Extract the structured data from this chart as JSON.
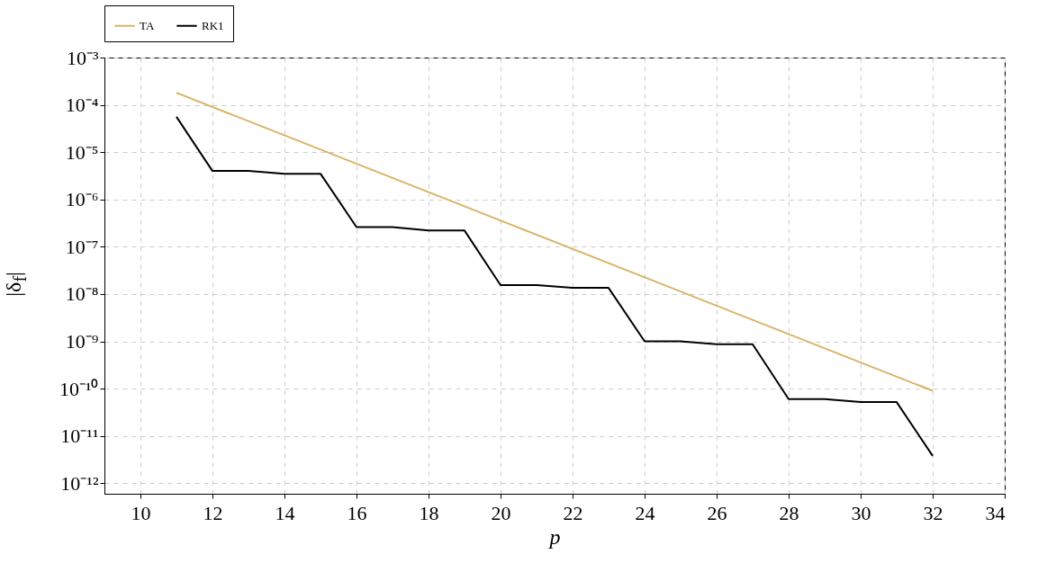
{
  "chart_data": {
    "type": "line",
    "xlabel": "p",
    "ylabel": "|δ$_{f}$|",
    "xlim": [
      9,
      34
    ],
    "xticks": [
      10,
      12,
      14,
      16,
      18,
      20,
      22,
      24,
      26,
      28,
      30,
      32,
      34
    ],
    "ylim": [
      6e-13,
      0.001
    ],
    "yticks": [
      {
        "value": 1e-12,
        "label": "10⁻¹²"
      },
      {
        "value": 1e-11,
        "label": "10⁻¹¹"
      },
      {
        "value": 1e-10,
        "label": "10⁻¹⁰"
      },
      {
        "value": 1e-09,
        "label": "10⁻⁹"
      },
      {
        "value": 1e-08,
        "label": "10⁻⁸"
      },
      {
        "value": 1e-07,
        "label": "10⁻⁷"
      },
      {
        "value": 1e-06,
        "label": "10⁻⁶"
      },
      {
        "value": 1e-05,
        "label": "10⁻⁵"
      },
      {
        "value": 0.0001,
        "label": "10⁻⁴"
      },
      {
        "value": 0.001,
        "label": "10⁻³"
      }
    ],
    "log": true,
    "grid": true,
    "legend": "top",
    "line_style": "solid",
    "series": [
      {
        "name": "TA",
        "color": "#d9b365",
        "x": [
          11,
          32
        ],
        "values": [
          0.00018,
          9e-11
        ]
      },
      {
        "name": "RK1",
        "color": "#000000",
        "x": [
          11,
          12,
          13,
          14,
          15,
          16,
          17,
          18,
          19,
          20,
          21,
          22,
          23,
          24,
          25,
          26,
          27,
          28,
          29,
          30,
          31,
          32
        ],
        "values": [
          5.6e-05,
          4e-06,
          4e-06,
          3.5e-06,
          3.5e-06,
          2.6e-07,
          2.6e-07,
          2.2e-07,
          2.2e-07,
          1.55e-08,
          1.55e-08,
          1.35e-08,
          1.35e-08,
          1e-09,
          1e-09,
          8.7e-10,
          8.7e-10,
          6e-11,
          6e-11,
          5.2e-11,
          5.2e-11,
          3.8e-12
        ]
      }
    ]
  }
}
